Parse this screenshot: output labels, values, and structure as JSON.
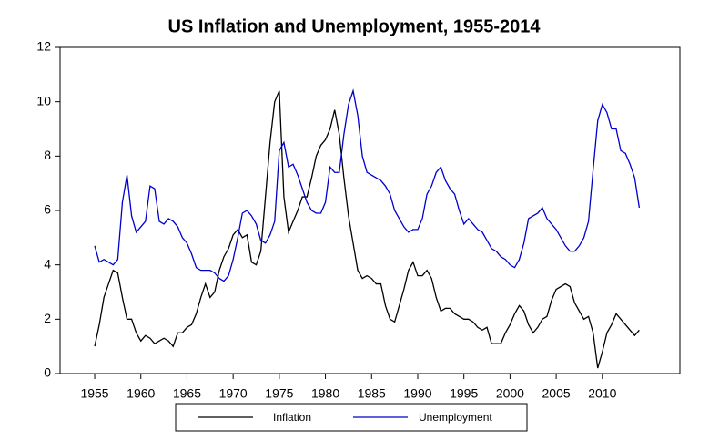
{
  "chart_data": {
    "type": "line",
    "title": "US Inflation and Unemployment, 1955-2014",
    "x": [
      1955,
      1955.5,
      1956,
      1956.5,
      1957,
      1957.5,
      1958,
      1958.5,
      1959,
      1959.5,
      1960,
      1960.5,
      1961,
      1961.5,
      1962,
      1962.5,
      1963,
      1963.5,
      1964,
      1964.5,
      1965,
      1965.5,
      1966,
      1966.5,
      1967,
      1967.5,
      1968,
      1968.5,
      1969,
      1969.5,
      1970,
      1970.5,
      1971,
      1971.5,
      1972,
      1972.5,
      1973,
      1973.5,
      1974,
      1974.5,
      1975,
      1975.5,
      1976,
      1976.5,
      1977,
      1977.5,
      1978,
      1978.5,
      1979,
      1979.5,
      1980,
      1980.5,
      1981,
      1981.5,
      1982,
      1982.5,
      1983,
      1983.5,
      1984,
      1984.5,
      1985,
      1985.5,
      1986,
      1986.5,
      1987,
      1987.5,
      1988,
      1988.5,
      1989,
      1989.5,
      1990,
      1990.5,
      1991,
      1991.5,
      1992,
      1992.5,
      1993,
      1993.5,
      1994,
      1994.5,
      1995,
      1995.5,
      1996,
      1996.5,
      1997,
      1997.5,
      1998,
      1998.5,
      1999,
      1999.5,
      2000,
      2000.5,
      2001,
      2001.5,
      2002,
      2002.5,
      2003,
      2003.5,
      2004,
      2004.5,
      2005,
      2005.5,
      2006,
      2006.5,
      2007,
      2007.5,
      2008,
      2008.5,
      2009,
      2009.5,
      2010,
      2010.5,
      2011,
      2011.5,
      2012,
      2012.5,
      2013,
      2013.5,
      2014
    ],
    "series": [
      {
        "name": "Inflation",
        "color": "#000000",
        "values": [
          1.0,
          1.8,
          2.8,
          3.3,
          3.8,
          3.7,
          2.8,
          2.0,
          2.0,
          1.5,
          1.2,
          1.4,
          1.3,
          1.1,
          1.2,
          1.3,
          1.2,
          1.0,
          1.5,
          1.5,
          1.7,
          1.8,
          2.2,
          2.8,
          3.3,
          2.8,
          3.0,
          3.8,
          4.3,
          4.6,
          5.1,
          5.3,
          5.0,
          5.1,
          4.1,
          4.0,
          4.5,
          6.5,
          8.5,
          10.0,
          10.4,
          6.5,
          5.2,
          5.6,
          6.0,
          6.5,
          6.5,
          7.2,
          8.0,
          8.4,
          8.6,
          9.0,
          9.7,
          8.8,
          7.2,
          5.8,
          4.8,
          3.8,
          3.5,
          3.6,
          3.5,
          3.3,
          3.3,
          2.5,
          2.0,
          1.9,
          2.5,
          3.1,
          3.8,
          4.1,
          3.6,
          3.6,
          3.8,
          3.5,
          2.8,
          2.3,
          2.4,
          2.4,
          2.2,
          2.1,
          2.0,
          2.0,
          1.9,
          1.7,
          1.6,
          1.7,
          1.1,
          1.1,
          1.1,
          1.5,
          1.8,
          2.2,
          2.5,
          2.3,
          1.8,
          1.5,
          1.7,
          2.0,
          2.1,
          2.7,
          3.1,
          3.2,
          3.3,
          3.2,
          2.6,
          2.3,
          2.0,
          2.1,
          1.5,
          0.2,
          0.8,
          1.5,
          1.8,
          2.2,
          2.0,
          1.8,
          1.6,
          1.4,
          1.6
        ]
      },
      {
        "name": "Unemployment",
        "color": "#0000cc",
        "values": [
          4.7,
          4.1,
          4.2,
          4.1,
          4.0,
          4.2,
          6.3,
          7.3,
          5.8,
          5.2,
          5.4,
          5.6,
          6.9,
          6.8,
          5.6,
          5.5,
          5.7,
          5.6,
          5.4,
          5.0,
          4.8,
          4.4,
          3.9,
          3.8,
          3.8,
          3.8,
          3.7,
          3.5,
          3.4,
          3.6,
          4.2,
          5.0,
          5.9,
          6.0,
          5.8,
          5.5,
          4.9,
          4.8,
          5.1,
          5.6,
          8.2,
          8.5,
          7.6,
          7.7,
          7.3,
          6.8,
          6.3,
          6.0,
          5.9,
          5.9,
          6.3,
          7.6,
          7.4,
          7.4,
          8.8,
          9.9,
          10.4,
          9.5,
          8.0,
          7.4,
          7.3,
          7.2,
          7.1,
          6.9,
          6.6,
          6.0,
          5.7,
          5.4,
          5.2,
          5.3,
          5.3,
          5.7,
          6.6,
          6.9,
          7.4,
          7.6,
          7.1,
          6.8,
          6.6,
          6.0,
          5.5,
          5.7,
          5.5,
          5.3,
          5.2,
          4.9,
          4.6,
          4.5,
          4.3,
          4.2,
          4.0,
          3.9,
          4.2,
          4.8,
          5.7,
          5.8,
          5.9,
          6.1,
          5.7,
          5.5,
          5.3,
          5.0,
          4.7,
          4.5,
          4.5,
          4.7,
          5.0,
          5.6,
          7.5,
          9.3,
          9.9,
          9.6,
          9.0,
          9.0,
          8.2,
          8.1,
          7.7,
          7.2,
          6.1
        ]
      }
    ],
    "xlim": [
      1951.25,
      2018.4
    ],
    "xticks": [
      1955,
      1960,
      1965,
      1970,
      1975,
      1980,
      1985,
      1990,
      1995,
      2000,
      2005,
      2010
    ],
    "ylim": [
      0,
      12
    ],
    "yticks": [
      0,
      2,
      4,
      6,
      8,
      10,
      12
    ],
    "grid": false,
    "legend": "bottom"
  }
}
